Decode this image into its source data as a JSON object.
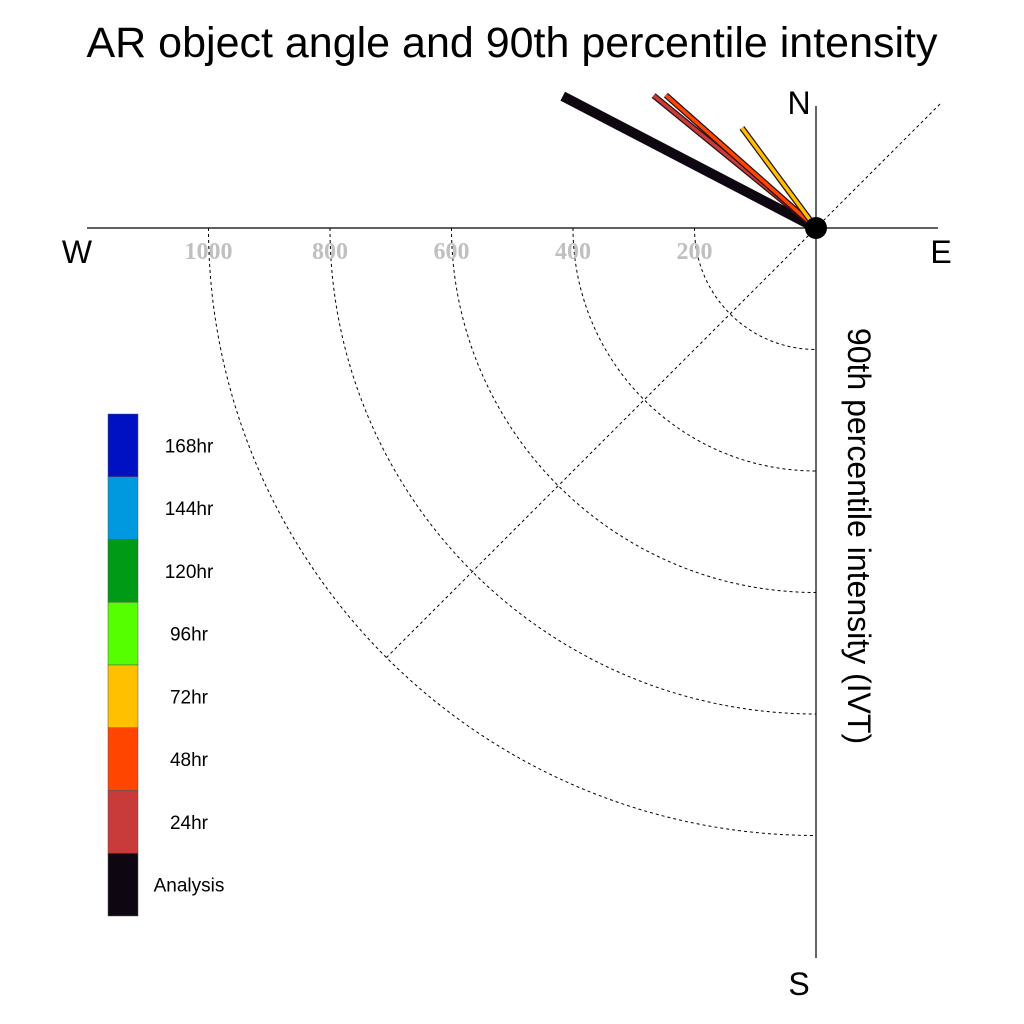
{
  "chart_data": {
    "type": "polar-line",
    "title": "AR object angle and 90th percentile intensity",
    "radial_label": "90th percentile intensity (IVT)",
    "compass": {
      "north": "N",
      "south": "S",
      "east": "E",
      "west": "W"
    },
    "radial_ticks": [
      200,
      400,
      600,
      800,
      1000
    ],
    "radial_range": [
      0,
      1200
    ],
    "series": [
      {
        "name": "Analysis",
        "color": "#0e0610",
        "angle_deg": 62.5,
        "intensity": 470
      },
      {
        "name": "24hr",
        "color": "#c93a3a",
        "angle_deg": 50.8,
        "intensity": 345
      },
      {
        "name": "48hr",
        "color": "#ff4500",
        "angle_deg": 48.5,
        "intensity": 330
      },
      {
        "name": "72hr",
        "color": "#ffc000",
        "angle_deg": 36.5,
        "intensity": 205
      }
    ],
    "legend": [
      {
        "label": "168hr",
        "color": "#0011c4"
      },
      {
        "label": "144hr",
        "color": "#0099e0"
      },
      {
        "label": "120hr",
        "color": "#009a17"
      },
      {
        "label": "96hr",
        "color": "#55ff00"
      },
      {
        "label": "72hr",
        "color": "#ffc000"
      },
      {
        "label": "48hr",
        "color": "#ff4500"
      },
      {
        "label": "24hr",
        "color": "#c93a3a"
      },
      {
        "label": "Analysis",
        "color": "#0e0610"
      }
    ]
  }
}
